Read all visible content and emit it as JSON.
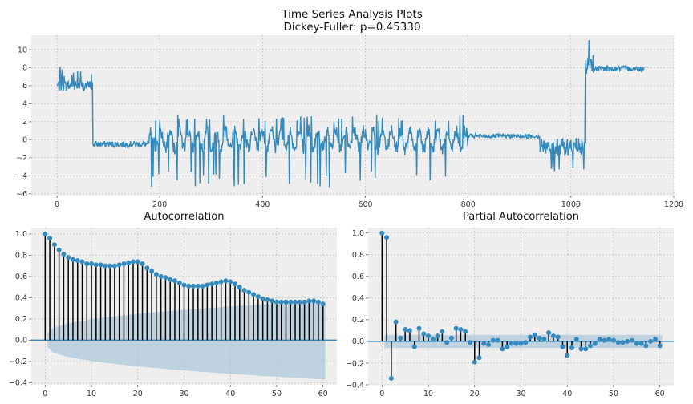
{
  "figure": {
    "title_line1": "Time Series Analysis Plots",
    "title_line2": "Dickey-Fuller: p=0.45330"
  },
  "colors": {
    "series": "#348ABD",
    "stem": "#000000",
    "axes_bg": "#EEEEEE",
    "grid": "#BBBBBB",
    "confband": "#A9C6DA"
  },
  "chart_data": [
    {
      "type": "line",
      "name": "time-series",
      "title": "",
      "xlim": [
        -50,
        1200
      ],
      "ylim": [
        -6.2,
        11.6
      ],
      "xticks": [
        0,
        200,
        400,
        600,
        800,
        1000,
        1200
      ],
      "yticks": [
        -6,
        -4,
        -2,
        0,
        2,
        4,
        6,
        8,
        10
      ],
      "grid": true,
      "n_points": 1143,
      "segments": [
        {
          "x_start": 0,
          "x_end": 70,
          "approx_level": 6.0,
          "range": [
            5.0,
            8.0
          ]
        },
        {
          "x_start": 70,
          "x_end": 180,
          "approx_level": -0.5,
          "range": [
            -2.8,
            0.5
          ]
        },
        {
          "x_start": 180,
          "x_end": 960,
          "approx_level": 0.0,
          "range": [
            -5.5,
            3.0
          ]
        },
        {
          "x_start": 800,
          "x_end": 940,
          "approx_level": 0.4,
          "range": [
            0.0,
            1.0
          ]
        },
        {
          "x_start": 960,
          "x_end": 1028,
          "approx_level": -1.0,
          "range": [
            -3.5,
            1.0
          ]
        },
        {
          "x_start": 1028,
          "x_end": 1143,
          "approx_level": 8.0,
          "range": [
            7.0,
            10.8
          ]
        }
      ]
    },
    {
      "type": "stem",
      "name": "acf",
      "title": "Autocorrelation",
      "xlim": [
        -3,
        63
      ],
      "ylim": [
        -0.42,
        1.06
      ],
      "xticks": [
        0,
        10,
        20,
        30,
        40,
        50,
        60
      ],
      "yticks": [
        -0.4,
        -0.2,
        0.0,
        0.2,
        0.4,
        0.6,
        0.8,
        1.0
      ],
      "grid": true,
      "lags": [
        0,
        1,
        2,
        3,
        4,
        5,
        6,
        7,
        8,
        9,
        10,
        11,
        12,
        13,
        14,
        15,
        16,
        17,
        18,
        19,
        20,
        21,
        22,
        23,
        24,
        25,
        26,
        27,
        28,
        29,
        30,
        31,
        32,
        33,
        34,
        35,
        36,
        37,
        38,
        39,
        40,
        41,
        42,
        43,
        44,
        45,
        46,
        47,
        48,
        49,
        50,
        51,
        52,
        53,
        54,
        55,
        56,
        57,
        58,
        59,
        60
      ],
      "values": [
        1.0,
        0.96,
        0.9,
        0.85,
        0.81,
        0.78,
        0.76,
        0.75,
        0.74,
        0.72,
        0.72,
        0.71,
        0.71,
        0.7,
        0.7,
        0.7,
        0.71,
        0.72,
        0.73,
        0.74,
        0.74,
        0.72,
        0.68,
        0.65,
        0.62,
        0.6,
        0.59,
        0.57,
        0.56,
        0.54,
        0.52,
        0.51,
        0.51,
        0.51,
        0.51,
        0.52,
        0.53,
        0.54,
        0.55,
        0.56,
        0.55,
        0.53,
        0.5,
        0.47,
        0.45,
        0.43,
        0.41,
        0.39,
        0.38,
        0.37,
        0.36,
        0.36,
        0.36,
        0.36,
        0.36,
        0.36,
        0.36,
        0.37,
        0.37,
        0.36,
        0.34
      ],
      "confint_lower_start": -0.06,
      "confint_lower_end": -0.37
    },
    {
      "type": "stem",
      "name": "pacf",
      "title": "Partial Autocorrelation",
      "xlim": [
        -3,
        63
      ],
      "ylim": [
        -0.4,
        1.05
      ],
      "xticks": [
        0,
        10,
        20,
        30,
        40,
        50,
        60
      ],
      "yticks": [
        -0.4,
        -0.2,
        0.0,
        0.2,
        0.4,
        0.6,
        0.8,
        1.0
      ],
      "grid": true,
      "lags": [
        0,
        1,
        2,
        3,
        4,
        5,
        6,
        7,
        8,
        9,
        10,
        11,
        12,
        13,
        14,
        15,
        16,
        17,
        18,
        19,
        20,
        21,
        22,
        23,
        24,
        25,
        26,
        27,
        28,
        29,
        30,
        31,
        32,
        33,
        34,
        35,
        36,
        37,
        38,
        39,
        40,
        41,
        42,
        43,
        44,
        45,
        46,
        47,
        48,
        49,
        50,
        51,
        52,
        53,
        54,
        55,
        56,
        57,
        58,
        59,
        60
      ],
      "values": [
        1.0,
        0.96,
        -0.34,
        0.18,
        0.03,
        0.11,
        0.1,
        -0.05,
        0.12,
        0.07,
        0.05,
        0.02,
        0.05,
        0.09,
        -0.01,
        0.03,
        0.12,
        0.11,
        0.09,
        -0.01,
        -0.19,
        -0.15,
        -0.02,
        -0.03,
        0.01,
        0.01,
        -0.07,
        -0.05,
        -0.02,
        -0.02,
        -0.02,
        -0.01,
        0.04,
        0.06,
        0.03,
        0.02,
        0.08,
        0.05,
        0.04,
        -0.05,
        -0.13,
        -0.06,
        0.02,
        -0.07,
        -0.07,
        -0.04,
        -0.02,
        0.02,
        0.01,
        0.02,
        0.01,
        -0.01,
        -0.01,
        0.0,
        0.01,
        -0.02,
        -0.02,
        -0.04,
        0.0,
        0.02,
        -0.04
      ],
      "confint": 0.06
    }
  ]
}
